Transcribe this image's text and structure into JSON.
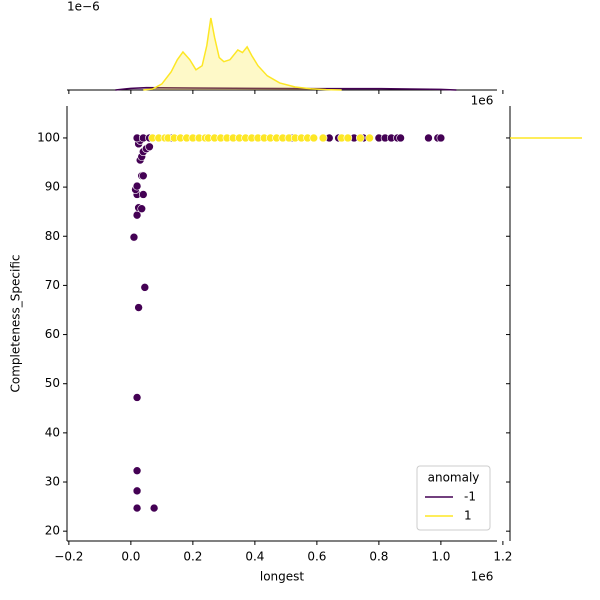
{
  "chart_data": [
    {
      "type": "scatter",
      "xlabel": "longest",
      "ylabel": "Completeness_Specific",
      "x_offset_label": "1e6",
      "xlim": [
        -0.206,
        1.181
      ],
      "ylim": [
        18,
        106.5
      ],
      "xticks": [
        {
          "value": -0.2,
          "label": "−0.2"
        },
        {
          "value": 0,
          "label": "0.0"
        },
        0.2,
        0.4,
        0.6,
        0.8,
        {
          "value": 1,
          "label": "1.0"
        },
        1.2
      ],
      "yticks": [
        20,
        30,
        40,
        50,
        60,
        70,
        80,
        90,
        100
      ],
      "legend": {
        "title": "anomaly",
        "corner": "lower right"
      },
      "series": [
        {
          "name": "-1",
          "color": "#440154",
          "x": [
            0.01,
            0.02,
            0.02,
            0.02,
            0.02,
            0.075,
            0.025,
            0.045,
            0.02,
            0.025,
            0.035,
            0.02,
            0.04,
            0.015,
            0.02,
            0.035,
            0.04,
            0.03,
            0.035,
            0.04,
            0.05,
            0.06,
            0.025,
            0.03,
            0.02,
            0.04,
            0.06,
            0.13,
            0.52,
            0.64,
            0.67,
            0.72,
            0.75,
            0.8,
            0.82,
            0.84,
            0.86,
            0.87,
            0.96,
            0.99,
            1.0
          ],
          "y": [
            79.8,
            47.2,
            32.3,
            28.2,
            24.7,
            24.7,
            65.5,
            69.6,
            84.3,
            85.8,
            85.6,
            88.5,
            88.5,
            89.5,
            90.2,
            92.3,
            92.3,
            95.5,
            96.2,
            97.2,
            97.8,
            98.2,
            98.8,
            99.5,
            100,
            100,
            100,
            100,
            100,
            100,
            100,
            100,
            100,
            100,
            100,
            100,
            100,
            100,
            100,
            100,
            100
          ]
        },
        {
          "name": "1",
          "color": "#fde725",
          "x": [
            0.07,
            0.09,
            0.11,
            0.12,
            0.14,
            0.16,
            0.18,
            0.2,
            0.22,
            0.24,
            0.25,
            0.27,
            0.29,
            0.31,
            0.33,
            0.35,
            0.37,
            0.39,
            0.41,
            0.43,
            0.45,
            0.47,
            0.49,
            0.51,
            0.53,
            0.55,
            0.57,
            0.59,
            0.62,
            0.68,
            0.7,
            0.74,
            0.77
          ],
          "y": [
            100,
            100,
            100,
            100,
            100,
            100,
            100,
            100,
            100,
            100,
            100,
            100,
            100,
            100,
            100,
            100,
            100,
            100,
            100,
            100,
            100,
            100,
            100,
            100,
            100,
            100,
            100,
            100,
            100,
            100,
            100,
            100,
            100
          ]
        }
      ]
    },
    {
      "type": "kde",
      "orientation": "x",
      "y_offset_label": "1e−6",
      "x_offset_label": "1e6",
      "ylim": [
        0,
        4.3
      ],
      "series": [
        {
          "name": "-1",
          "color": "#440154",
          "x": [
            -0.05,
            0.0,
            0.05,
            0.2,
            0.4,
            0.6,
            0.8,
            0.9,
            1.0,
            1.05
          ],
          "values": [
            0,
            0.08,
            0.12,
            0.1,
            0.08,
            0.07,
            0.07,
            0.05,
            0.03,
            0
          ]
        },
        {
          "name": "1",
          "color": "#fde725",
          "x": [
            0.04,
            0.07,
            0.1,
            0.13,
            0.15,
            0.168,
            0.19,
            0.21,
            0.23,
            0.245,
            0.258,
            0.27,
            0.285,
            0.3,
            0.32,
            0.345,
            0.36,
            0.375,
            0.39,
            0.41,
            0.44,
            0.48,
            0.53,
            0.58,
            0.63,
            0.68
          ],
          "values": [
            0,
            0.05,
            0.3,
            0.9,
            1.5,
            1.88,
            1.5,
            1.0,
            1.2,
            2.2,
            3.56,
            2.6,
            1.6,
            1.4,
            1.5,
            1.98,
            1.85,
            2.13,
            1.7,
            1.2,
            0.7,
            0.35,
            0.15,
            0.06,
            0.02,
            0
          ]
        }
      ]
    },
    {
      "type": "kde",
      "orientation": "y",
      "xlim": [
        0,
        4.3
      ],
      "series": [
        {
          "name": "1",
          "color": "#fde725",
          "x": [
            0,
            3.56
          ],
          "y": [
            100,
            100
          ]
        }
      ]
    }
  ]
}
